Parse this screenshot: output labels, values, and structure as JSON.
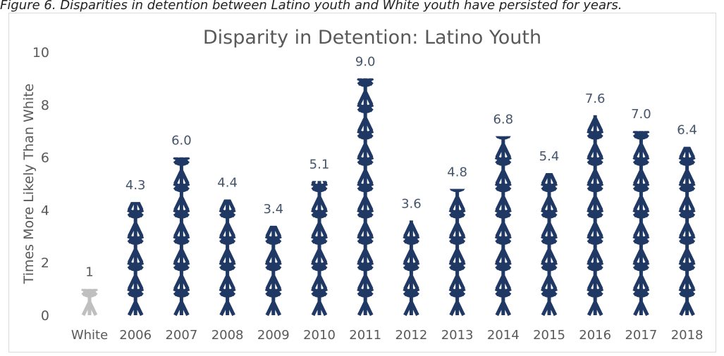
{
  "caption_fragment": "Figure 6. Disparities in detention between Latino youth and White youth have persisted for years.",
  "chart_data": {
    "type": "bar",
    "title": "Disparity in Detention: Latino Youth",
    "ylabel": "Times More Likely Than White",
    "xlabel": "",
    "ylim": [
      0,
      10
    ],
    "yticks": [
      0,
      2,
      4,
      6,
      8,
      10
    ],
    "categories": [
      "White",
      "2006",
      "2007",
      "2008",
      "2009",
      "2010",
      "2011",
      "2012",
      "2013",
      "2014",
      "2015",
      "2016",
      "2017",
      "2018"
    ],
    "values": [
      1,
      4.3,
      6.0,
      4.4,
      3.4,
      5.1,
      9.0,
      3.6,
      4.8,
      6.8,
      5.4,
      7.6,
      7.0,
      6.4
    ],
    "data_labels": [
      "1",
      "4.3",
      "6.0",
      "4.4",
      "3.4",
      "5.1",
      "9.0",
      "3.6",
      "4.8",
      "6.8",
      "5.4",
      "7.6",
      "7.0",
      "6.4"
    ],
    "grid": false,
    "legend": "none",
    "colors": {
      "latino": "#1f3864",
      "white": "#bfbfbf",
      "label": "#44546a",
      "axis": "#595959"
    },
    "icon": "person-icon"
  }
}
